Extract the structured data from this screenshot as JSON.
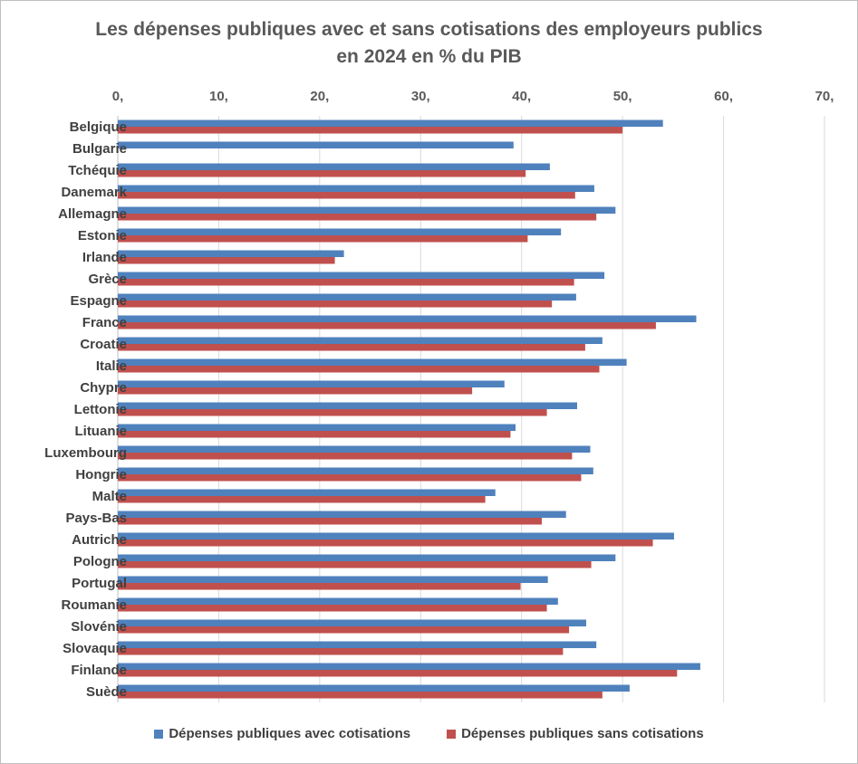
{
  "chart_data": {
    "type": "bar",
    "orientation": "horizontal",
    "title_line1": "Les dépenses publiques avec et sans cotisations des employeurs publics",
    "title_line2": "en 2024 en % du PIB",
    "xlim": [
      0,
      70
    ],
    "xticks": [
      "0,",
      "10,",
      "20,",
      "30,",
      "40,",
      "50,",
      "60,",
      "70,"
    ],
    "grid": true,
    "legend_position": "bottom",
    "categories": [
      "Belgique",
      "Bulgarie",
      "Tchéquie",
      "Danemark",
      "Allemagne",
      "Estonie",
      "Irlande",
      "Grèce",
      "Espagne",
      "France",
      "Croatie",
      "Italie",
      "Chypre",
      "Lettonie",
      "Lituanie",
      "Luxembourg",
      "Hongrie",
      "Malte",
      "Pays-Bas",
      "Autriche",
      "Pologne",
      "Portugal",
      "Roumanie",
      "Slovénie",
      "Slovaquie",
      "Finlande",
      "Suède"
    ],
    "series": [
      {
        "name": "Dépenses publiques avec cotisations",
        "color": "#4f81bd",
        "values": [
          54.0,
          39.2,
          42.8,
          47.2,
          49.3,
          43.9,
          22.4,
          48.2,
          45.4,
          57.3,
          48.0,
          50.4,
          38.3,
          45.5,
          39.4,
          46.8,
          47.1,
          37.4,
          44.4,
          55.1,
          49.3,
          42.6,
          43.6,
          46.4,
          47.4,
          57.7,
          50.7
        ]
      },
      {
        "name": "Dépenses publiques sans cotisations",
        "color": "#c0504d",
        "values": [
          50.0,
          0,
          40.4,
          45.3,
          47.4,
          40.6,
          21.5,
          45.2,
          43.0,
          53.3,
          46.3,
          47.7,
          35.1,
          42.5,
          38.9,
          45.0,
          45.9,
          36.4,
          42.0,
          53.0,
          46.9,
          39.9,
          42.5,
          44.7,
          44.1,
          55.4,
          48.0
        ]
      }
    ]
  }
}
